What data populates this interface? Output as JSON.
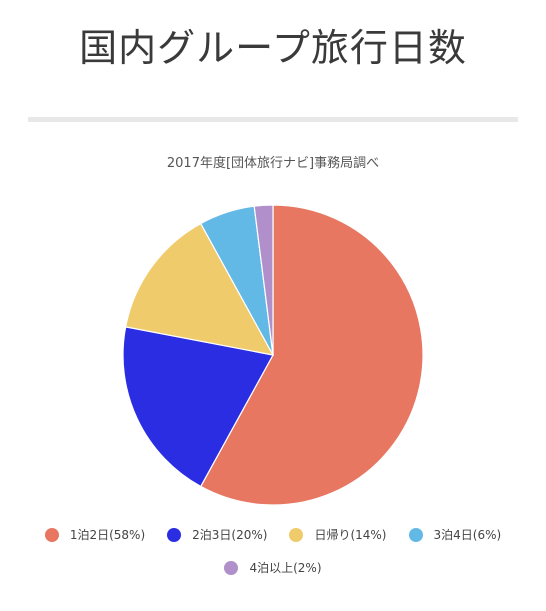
{
  "header": {
    "title": "国内グループ旅行日数"
  },
  "chart_data": {
    "type": "pie",
    "title": "2017年度[団体旅行ナビ]事務局調べ",
    "categories": [
      "1泊2日",
      "2泊3日",
      "日帰り",
      "3泊4日",
      "4泊以上"
    ],
    "values": [
      58,
      20,
      14,
      6,
      2
    ],
    "labels": [
      "1泊2日(58%)",
      "2泊3日(20%)",
      "日帰り(14%)",
      "3泊4日(6%)",
      "4泊以上(2%)"
    ],
    "colors": [
      "#E87762",
      "#2B2DE3",
      "#EFCB6B",
      "#62B9E6",
      "#B08FCB"
    ],
    "legend_position": "bottom",
    "start_angle_deg": 0,
    "direction": "clockwise"
  }
}
